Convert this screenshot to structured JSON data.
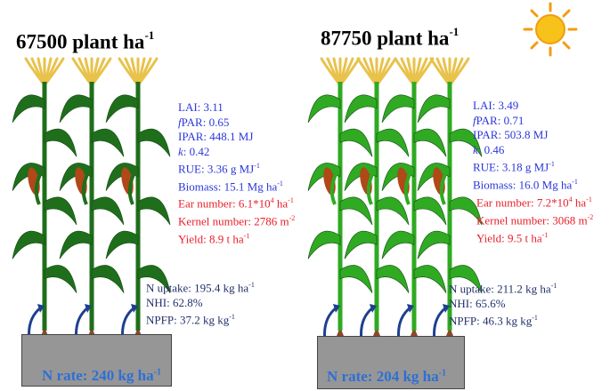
{
  "left": {
    "title_value": "67500 plant ha",
    "title_exp": "-1",
    "nrate_value": "N rate: 240 kg ha",
    "nrate_exp": "-1",
    "canopy": {
      "lai": "LAI: 3.11",
      "fpar_prefix": "f",
      "fpar": "PAR: 0.65",
      "ipar": "IPAR: 448.1 MJ",
      "k_label": "k",
      "k": ": 0.42",
      "rue": "RUE: 3.36 g MJ",
      "rue_exp": "-1",
      "biomass": "Biomass: 15.1 Mg ha",
      "biomass_exp": "-1"
    },
    "yield": {
      "ear": "Ear number: 6.1*10",
      "ear_exp1": "4",
      "ear_unit": " ha",
      "ear_exp2": "-1",
      "kernel": "Kernel number: 2786 m",
      "kernel_exp": "-2",
      "yield": "Yield: 8.9 t ha",
      "yield_exp": "-1"
    },
    "nitrogen": {
      "uptake": "N uptake: 195.4 kg ha",
      "uptake_exp": "-1",
      "nhi": "NHI: 62.8%",
      "npfp": "NPFP: 37.2 kg kg",
      "npfp_exp": "-1"
    }
  },
  "right": {
    "title_value": "87750 plant ha",
    "title_exp": "-1",
    "nrate_value": "N rate: 204 kg ha",
    "nrate_exp": "-1",
    "canopy": {
      "lai": "LAI: 3.49",
      "fpar_prefix": "f",
      "fpar": "PAR: 0.71",
      "ipar": "IPAR: 503.8 MJ",
      "k_label": "k",
      "k": ": 0.46",
      "rue": "RUE: 3.18 g MJ",
      "rue_exp": "-1",
      "biomass": "Biomass: 16.0 Mg ha",
      "biomass_exp": "-1"
    },
    "yield": {
      "ear": "Ear number: 7.2*10",
      "ear_exp1": "4",
      "ear_unit": " ha",
      "ear_exp2": "-1",
      "kernel": "Kernel number: 3068 m",
      "kernel_exp": "-2",
      "yield": "Yield: 9.5 t ha",
      "yield_exp": "-1"
    },
    "nitrogen": {
      "uptake": "N uptake: 211.2 kg ha",
      "uptake_exp": "-1",
      "nhi": "NHI: 65.6%",
      "npfp": "NPFP: 46.3 kg kg",
      "npfp_exp": "-1"
    }
  },
  "colors": {
    "canopy_text": "#2b37d9",
    "yield_text": "#e8202a",
    "nitrogen_text": "#23306b",
    "nrate_text": "#2e6fd6",
    "soil": "#969696",
    "leaf_dark": "#1f6e1b",
    "leaf_bright": "#2faa22",
    "tassel": "#e8c24a",
    "ear": "#b04818",
    "root": "#8a4a2a",
    "sun": "#f7c21a"
  },
  "icons": [
    "maize-plant-icon",
    "sun-icon",
    "nitrogen-arrow-icon"
  ]
}
